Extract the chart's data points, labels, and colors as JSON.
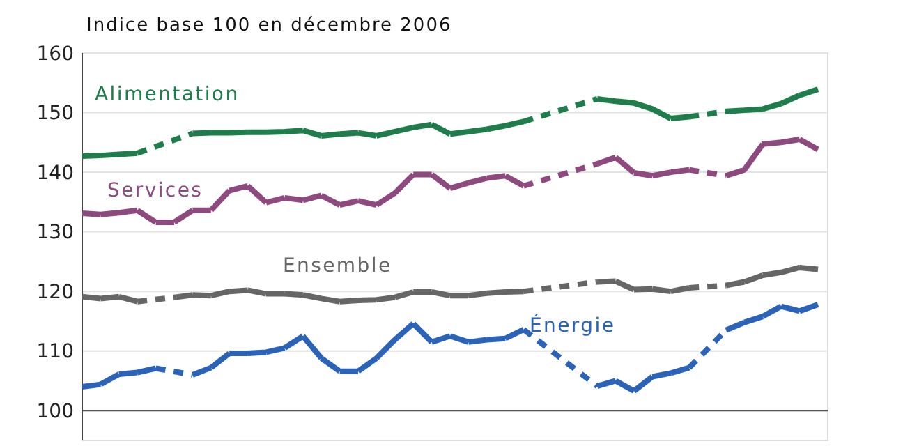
{
  "chart_data": {
    "type": "line",
    "title": "Indice base 100 en décembre 2006",
    "categories": [
      null,
      null,
      null,
      null,
      null,
      null,
      null,
      null,
      null,
      null,
      null,
      null,
      null,
      null,
      null,
      null,
      null,
      null,
      null,
      null,
      null,
      null,
      null,
      null,
      null,
      null,
      null,
      null,
      null,
      null,
      null,
      null,
      null,
      null,
      null,
      null,
      null,
      null,
      null,
      null,
      null
    ],
    "ylim": [
      95,
      160
    ],
    "yticks": [
      100,
      110,
      120,
      130,
      140,
      150,
      160
    ],
    "grid": "y",
    "legend": false,
    "ref_lines": [
      {
        "axis": "y",
        "value": 100,
        "color": "#555555"
      }
    ],
    "series": [
      {
        "name": "Alimentation",
        "color": "#1e7d4a",
        "line_style": "dashed",
        "values": [
          142.7,
          142.8,
          143.0,
          143.2,
          null,
          null,
          146.5,
          146.6,
          146.6,
          146.7,
          146.7,
          146.8,
          147.0,
          146.1,
          146.4,
          146.6,
          146.1,
          146.8,
          147.5,
          148.0,
          146.4,
          146.8,
          147.2,
          147.8,
          148.5,
          null,
          null,
          null,
          152.3,
          151.9,
          151.6,
          150.6,
          149.0,
          149.3,
          null,
          150.2,
          150.4,
          150.6,
          151.5,
          152.9,
          153.9
        ]
      },
      {
        "name": "Services",
        "color": "#8e4a7e",
        "line_style": "dashed",
        "values": [
          133.1,
          132.9,
          133.2,
          133.6,
          131.6,
          131.6,
          133.6,
          133.6,
          136.9,
          137.7,
          134.9,
          135.7,
          135.3,
          136.1,
          134.5,
          135.2,
          134.5,
          136.5,
          139.6,
          139.6,
          137.3,
          138.2,
          139.0,
          139.4,
          137.7,
          null,
          null,
          null,
          141.4,
          142.5,
          139.9,
          139.4,
          140.0,
          140.4,
          null,
          139.4,
          140.4,
          144.7,
          145.0,
          145.5,
          143.8
        ]
      },
      {
        "name": "Ensemble",
        "color": "#666666",
        "line_style": "dashed",
        "values": [
          119.1,
          118.8,
          119.1,
          118.3,
          null,
          119.0,
          119.4,
          119.3,
          120.0,
          120.2,
          119.6,
          119.6,
          119.4,
          118.8,
          118.3,
          118.5,
          118.6,
          119.0,
          119.9,
          119.9,
          119.3,
          119.3,
          119.7,
          119.9,
          120.0,
          null,
          null,
          null,
          121.6,
          121.7,
          120.3,
          120.4,
          120.0,
          120.6,
          null,
          121.0,
          121.6,
          122.7,
          123.2,
          124.0,
          123.7
        ]
      },
      {
        "name": "Énergie",
        "color": "#2a63b8",
        "line_style": "dashed",
        "values": [
          104.0,
          104.4,
          106.1,
          106.4,
          107.1,
          null,
          106.0,
          107.2,
          109.6,
          109.6,
          109.8,
          110.5,
          112.5,
          108.8,
          106.6,
          106.6,
          108.8,
          111.9,
          114.6,
          111.5,
          112.5,
          111.5,
          111.9,
          112.1,
          113.6,
          null,
          null,
          null,
          104.1,
          105.0,
          103.3,
          105.7,
          106.3,
          107.2,
          null,
          113.5,
          114.8,
          115.8,
          117.5,
          116.7,
          117.8
        ]
      }
    ]
  }
}
